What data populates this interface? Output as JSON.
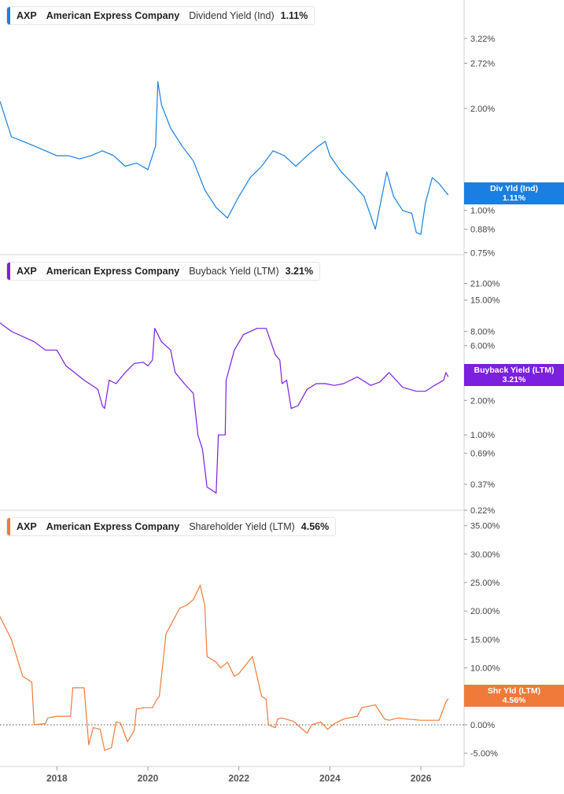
{
  "chart_data": [
    {
      "type": "line",
      "ticker": "AXP",
      "company": "American Express Company",
      "title": "Dividend Yield (Ind)",
      "current_value": "1.11%",
      "badge_label": "Div Yld (Ind)",
      "color": "#1a7fe0",
      "y_scale": "log",
      "ylim": [
        0.74,
        3.6
      ],
      "y_ticks": [
        "3.22%",
        "2.72%",
        "2.00%",
        "1.00%",
        "0.88%",
        "0.75%"
      ],
      "y_tick_values": [
        3.22,
        2.72,
        2.0,
        1.0,
        0.88,
        0.75
      ],
      "x": [
        2016.75,
        2017.0,
        2017.25,
        2017.5,
        2017.75,
        2018.0,
        2018.25,
        2018.5,
        2018.75,
        2019.0,
        2019.25,
        2019.5,
        2019.75,
        2020.0,
        2020.17,
        2020.22,
        2020.3,
        2020.5,
        2020.75,
        2021.0,
        2021.25,
        2021.5,
        2021.75,
        2022.0,
        2022.25,
        2022.5,
        2022.75,
        2023.0,
        2023.25,
        2023.5,
        2023.75,
        2023.9,
        2024.0,
        2024.25,
        2024.5,
        2024.75,
        2025.0,
        2025.25,
        2025.4,
        2025.6,
        2025.8,
        2025.9,
        2026.0,
        2026.1,
        2026.25,
        2026.4,
        2026.6
      ],
      "values": [
        2.1,
        1.65,
        1.6,
        1.55,
        1.5,
        1.45,
        1.45,
        1.42,
        1.45,
        1.5,
        1.45,
        1.35,
        1.38,
        1.32,
        1.55,
        2.4,
        2.05,
        1.75,
        1.55,
        1.4,
        1.15,
        1.02,
        0.95,
        1.1,
        1.25,
        1.35,
        1.5,
        1.45,
        1.35,
        1.45,
        1.55,
        1.6,
        1.45,
        1.3,
        1.2,
        1.1,
        0.88,
        1.3,
        1.1,
        1.0,
        0.98,
        0.86,
        0.85,
        1.05,
        1.25,
        1.2,
        1.11
      ]
    },
    {
      "type": "line",
      "ticker": "AXP",
      "company": "American Express Company",
      "title": "Buyback Yield (LTM)",
      "current_value": "3.21%",
      "badge_label": "Buyback Yield (LTM)",
      "color": "#7b1fe0",
      "y_scale": "log",
      "ylim": [
        0.22,
        24
      ],
      "y_ticks": [
        "21.00%",
        "15.00%",
        "8.00%",
        "6.00%",
        "2.00%",
        "1.00%",
        "0.69%",
        "0.37%",
        "0.22%"
      ],
      "y_tick_values": [
        21,
        15,
        8,
        6,
        2,
        1,
        0.69,
        0.37,
        0.22
      ],
      "x": [
        2016.75,
        2017.0,
        2017.5,
        2017.75,
        2018.0,
        2018.2,
        2018.6,
        2018.9,
        2019.0,
        2019.05,
        2019.15,
        2019.3,
        2019.5,
        2019.7,
        2019.9,
        2020.0,
        2020.1,
        2020.15,
        2020.3,
        2020.5,
        2020.6,
        2020.8,
        2021.0,
        2021.1,
        2021.2,
        2021.3,
        2021.4,
        2021.5,
        2021.55,
        2021.7,
        2021.72,
        2021.9,
        2022.1,
        2022.4,
        2022.6,
        2022.8,
        2022.9,
        2022.95,
        2023.05,
        2023.15,
        2023.3,
        2023.5,
        2023.7,
        2023.9,
        2024.1,
        2024.3,
        2024.6,
        2024.9,
        2025.1,
        2025.3,
        2025.6,
        2025.9,
        2026.1,
        2026.3,
        2026.5,
        2026.55,
        2026.6
      ],
      "values": [
        9.5,
        8.0,
        6.5,
        5.5,
        5.5,
        4.0,
        3.0,
        2.5,
        1.8,
        1.7,
        3.0,
        2.8,
        3.5,
        4.2,
        4.3,
        4.0,
        4.5,
        8.5,
        6.5,
        5.5,
        3.5,
        2.8,
        2.3,
        1.0,
        0.75,
        0.35,
        0.33,
        0.31,
        1.0,
        1.0,
        3.0,
        5.5,
        7.5,
        8.5,
        8.5,
        5.0,
        4.5,
        2.8,
        3.0,
        1.7,
        1.8,
        2.5,
        2.8,
        2.8,
        2.7,
        2.8,
        3.2,
        2.7,
        2.9,
        3.5,
        2.6,
        2.4,
        2.4,
        2.7,
        3.0,
        3.5,
        3.21
      ]
    },
    {
      "type": "line",
      "ticker": "AXP",
      "company": "American Express Company",
      "title": "Shareholder Yield (LTM)",
      "current_value": "4.56%",
      "badge_label": "Shr Yld (LTM)",
      "color": "#f07a3a",
      "y_scale": "linear",
      "ylim": [
        -6.5,
        35.5
      ],
      "y_ticks": [
        "35.00%",
        "30.00%",
        "25.00%",
        "20.00%",
        "15.00%",
        "10.00%",
        "5.00%",
        "0.00%",
        "-5.00%"
      ],
      "y_tick_values": [
        35,
        30,
        25,
        20,
        15,
        10,
        5,
        0,
        -5
      ],
      "zero_line": true,
      "x": [
        2016.75,
        2017.0,
        2017.25,
        2017.45,
        2017.5,
        2017.75,
        2017.8,
        2018.0,
        2018.3,
        2018.35,
        2018.6,
        2018.7,
        2018.8,
        2018.95,
        2019.05,
        2019.2,
        2019.3,
        2019.4,
        2019.55,
        2019.7,
        2019.75,
        2019.95,
        2020.1,
        2020.2,
        2020.25,
        2020.4,
        2020.5,
        2020.7,
        2020.85,
        2021.0,
        2021.15,
        2021.25,
        2021.3,
        2021.5,
        2021.6,
        2021.75,
        2021.9,
        2022.0,
        2022.2,
        2022.3,
        2022.5,
        2022.6,
        2022.65,
        2022.8,
        2022.85,
        2022.95,
        2023.2,
        2023.5,
        2023.6,
        2023.8,
        2023.95,
        2024.1,
        2024.3,
        2024.6,
        2024.7,
        2025.0,
        2025.2,
        2025.3,
        2025.5,
        2025.7,
        2026.0,
        2026.1,
        2026.4,
        2026.55,
        2026.6
      ],
      "values": [
        19.0,
        15.0,
        8.5,
        7.5,
        0.0,
        0.2,
        1.2,
        1.5,
        1.5,
        6.5,
        6.5,
        -3.5,
        -0.5,
        -0.8,
        -4.5,
        -4.0,
        0.5,
        0.3,
        -3.0,
        -1.0,
        2.8,
        3.0,
        3.0,
        4.5,
        5.0,
        16.0,
        17.5,
        20.5,
        21.0,
        22.0,
        24.5,
        21.0,
        12.0,
        11.0,
        10.0,
        11.0,
        8.5,
        9.0,
        11.0,
        12.0,
        5.0,
        4.5,
        0.0,
        -0.5,
        1.0,
        1.2,
        0.6,
        -1.5,
        0.0,
        0.5,
        -0.8,
        0.2,
        1.0,
        1.5,
        3.0,
        3.5,
        1.0,
        0.8,
        1.2,
        1.0,
        0.8,
        0.8,
        0.8,
        4.0,
        4.56
      ]
    }
  ],
  "x_axis": {
    "range": [
      2016.75,
      2026.95
    ],
    "ticks": [
      2018,
      2020,
      2022,
      2024,
      2026
    ],
    "labels": [
      "2018",
      "2020",
      "2022",
      "2024",
      "2026"
    ]
  }
}
